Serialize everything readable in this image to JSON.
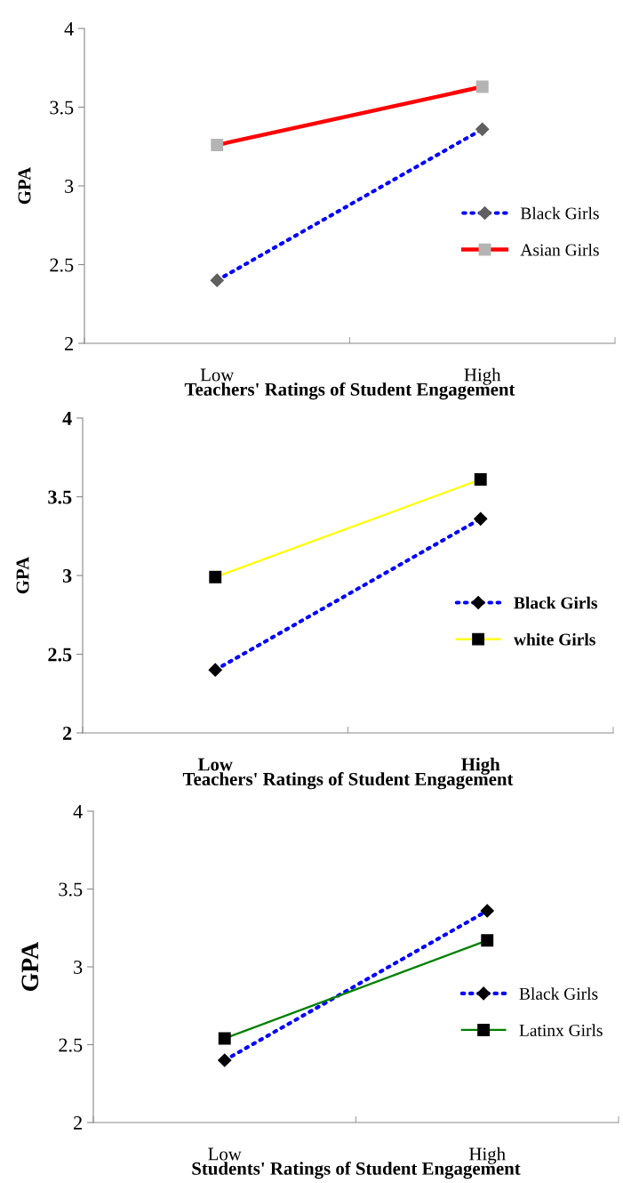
{
  "chart_data": [
    {
      "type": "line",
      "xlabel": "Teachers' Ratings of Student Engagement",
      "ylabel": "GPA",
      "categories": [
        "Low",
        "High"
      ],
      "ylim": [
        2,
        4
      ],
      "yticks": [
        2,
        2.5,
        3,
        3.5,
        4
      ],
      "legend": "right",
      "grid": false,
      "series": [
        {
          "name": "Black Girls",
          "color": "#0000ff",
          "marker": "diamond",
          "line_style": "dotted",
          "values": [
            2.4,
            3.36
          ]
        },
        {
          "name": "Asian Girls",
          "color": "#ff0000",
          "marker": "square",
          "line_style": "solid",
          "values": [
            3.26,
            3.63
          ]
        }
      ]
    },
    {
      "type": "line",
      "xlabel": "Teachers' Ratings of Student Engagement",
      "ylabel": "GPA",
      "categories": [
        "Low",
        "High"
      ],
      "ylim": [
        2,
        4
      ],
      "yticks": [
        2,
        2.5,
        3,
        3.5,
        4
      ],
      "legend": "right",
      "grid": false,
      "series": [
        {
          "name": "Black Girls",
          "color": "#0000ff",
          "marker": "diamond",
          "line_style": "dotted",
          "values": [
            2.4,
            3.36
          ]
        },
        {
          "name": "white Girls",
          "color": "#ffff00",
          "marker": "square",
          "line_style": "solid",
          "values": [
            2.99,
            3.61
          ]
        }
      ]
    },
    {
      "type": "line",
      "xlabel": "Students' Ratings of Student Engagement",
      "ylabel": "GPA",
      "categories": [
        "Low",
        "High"
      ],
      "ylim": [
        2,
        4
      ],
      "yticks": [
        2,
        2.5,
        3,
        3.5,
        4
      ],
      "legend": "right",
      "grid": false,
      "series": [
        {
          "name": "Black Girls",
          "color": "#0000ff",
          "marker": "diamond",
          "line_style": "dotted",
          "values": [
            2.4,
            3.36
          ]
        },
        {
          "name": "Latinx Girls",
          "color": "#008000",
          "marker": "square",
          "line_style": "solid",
          "values": [
            2.54,
            3.17
          ]
        }
      ]
    }
  ]
}
